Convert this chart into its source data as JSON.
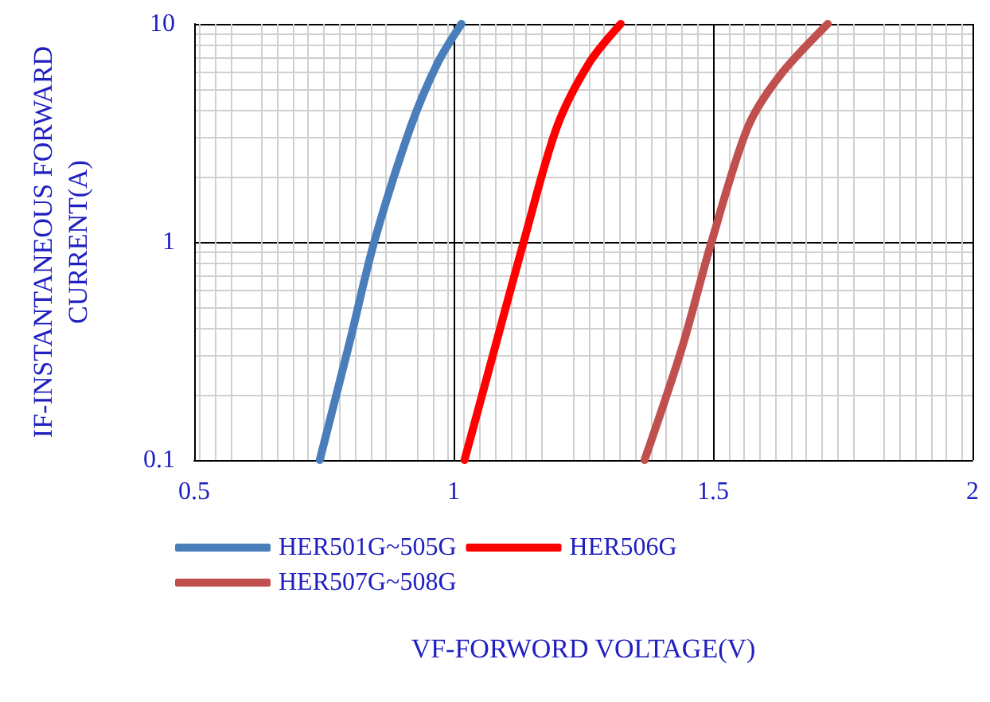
{
  "chart_data": {
    "type": "line",
    "xlabel": "VF-FORWORD VOLTAGE(V)",
    "ylabel": "IF-INSTANTANEOUS FORWARD CURRENT(A)",
    "log": "y",
    "xlim": [
      0.5,
      2
    ],
    "xticks": [
      0.5,
      1,
      1.5,
      2
    ],
    "ylim": [
      0.1,
      10
    ],
    "yticks": [
      0.1,
      1,
      10
    ],
    "grid": true,
    "legend": "bottom",
    "marker": "none",
    "line_style": "solid",
    "series": [
      {
        "name": "HER501G~505G",
        "color": "#4a7ebb",
        "x": [
          0.742,
          0.8,
          0.847,
          0.917,
          0.969,
          1.015
        ],
        "values": [
          0.1,
          0.35,
          1,
          3.36,
          6.6,
          10
        ]
      },
      {
        "name": "HER506G",
        "color": "#ff0000",
        "x": [
          1.021,
          1.08,
          1.135,
          1.199,
          1.261,
          1.322
        ],
        "values": [
          0.1,
          0.33,
          1,
          3.36,
          6.6,
          10
        ]
      },
      {
        "name": "HER507G~508G",
        "color": "#c0504d",
        "x": [
          1.368,
          1.439,
          1.497,
          1.567,
          1.629,
          1.721
        ],
        "values": [
          0.1,
          0.32,
          1,
          3.36,
          5.8,
          10
        ]
      }
    ]
  }
}
